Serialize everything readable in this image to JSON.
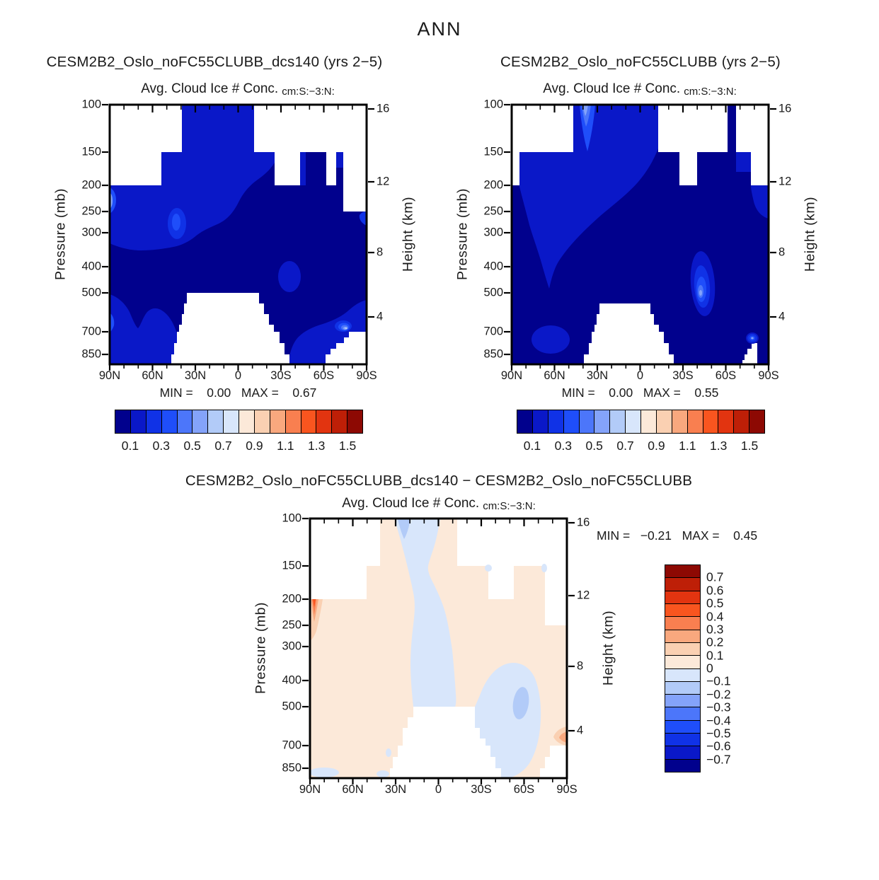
{
  "figure": {
    "title": "ANN"
  },
  "colors": {
    "background": "#ffffff",
    "axis": "#000000",
    "text": "#1a1a1a",
    "palette16": [
      "#01018D",
      "#0A18C8",
      "#1032E6",
      "#1F4EFA",
      "#4C76FA",
      "#84A3FA",
      "#B2CBF8",
      "#D8E6FB",
      "#FCE9D9",
      "#FAD0B2",
      "#F9A87E",
      "#F97F50",
      "#F9551F",
      "#E23410",
      "#BE1F07",
      "#8D0903"
    ]
  },
  "panels": [
    {
      "title": "CESM2B2_Oslo_noFC55CLUBB_dcs140 (yrs 2−5)",
      "subtitle": "Avg. Cloud Ice # Conc.",
      "units": "cm:S:−3:N:",
      "ylabel": "Pressure (mb)",
      "y2label": "Height (km)",
      "yticks": [
        "100",
        "150",
        "200",
        "250",
        "300",
        "400",
        "500",
        "700",
        "850"
      ],
      "y2ticks": [
        "16",
        "12",
        "8",
        "4"
      ],
      "xticks": [
        "90N",
        "60N",
        "30N",
        "0",
        "30S",
        "60S",
        "90S"
      ],
      "stats": "MIN =    0.00   MAX =    0.67",
      "colorbar_labels": [
        "0.1",
        "0.3",
        "0.5",
        "0.7",
        "0.9",
        "1.1",
        "1.3",
        "1.5"
      ]
    },
    {
      "title": "CESM2B2_Oslo_noFC55CLUBB (yrs 2−5)",
      "subtitle": "Avg. Cloud Ice # Conc.",
      "units": "cm:S:−3:N:",
      "ylabel": "Pressure (mb)",
      "y2label": "Height (km)",
      "yticks": [
        "100",
        "150",
        "200",
        "250",
        "300",
        "400",
        "500",
        "700",
        "850"
      ],
      "y2ticks": [
        "16",
        "12",
        "8",
        "4"
      ],
      "xticks": [
        "90N",
        "60N",
        "30N",
        "0",
        "30S",
        "60S",
        "90S"
      ],
      "stats": "MIN =    0.00   MAX =    0.55",
      "colorbar_labels": [
        "0.1",
        "0.3",
        "0.5",
        "0.7",
        "0.9",
        "1.1",
        "1.3",
        "1.5"
      ]
    },
    {
      "title": "CESM2B2_Oslo_noFC55CLUBB_dcs140 − CESM2B2_Oslo_noFC55CLUBB",
      "subtitle": "Avg. Cloud Ice # Conc.",
      "units": "cm:S:−3:N:",
      "ylabel": "Pressure (mb)",
      "y2label": "Height (km)",
      "yticks": [
        "100",
        "150",
        "200",
        "250",
        "300",
        "400",
        "500",
        "700",
        "850"
      ],
      "y2ticks": [
        "16",
        "12",
        "8",
        "4"
      ],
      "xticks": [
        "90N",
        "60N",
        "30N",
        "0",
        "30S",
        "60S",
        "90S"
      ],
      "stats": "MIN =   −0.21   MAX =    0.45",
      "colorbar_labels": [
        "0.7",
        "0.6",
        "0.5",
        "0.4",
        "0.3",
        "0.2",
        "0.1",
        "0",
        "−0.1",
        "−0.2",
        "−0.3",
        "−0.4",
        "−0.5",
        "−0.6",
        "−0.7"
      ]
    }
  ],
  "chart_data": [
    {
      "type": "heatmap",
      "panel": "top-left",
      "title": "CESM2B2_Oslo_noFC55CLUBB_dcs140 (yrs 2−5)",
      "field": "Avg. Cloud Ice # Conc.",
      "units": "cm:S:−3:N: (cm^-3)",
      "season": "ANN",
      "x_axis": {
        "ticks": [
          "90N",
          "60N",
          "30N",
          "0",
          "30S",
          "60S",
          "90S"
        ],
        "range_deg": [
          90,
          -90
        ]
      },
      "y_axis_left": {
        "label": "Pressure (mb)",
        "scale": "log",
        "ticks": [
          100,
          150,
          200,
          250,
          300,
          400,
          500,
          700,
          850
        ],
        "range": [
          100,
          925
        ]
      },
      "y_axis_right": {
        "label": "Height (km)",
        "ticks": [
          16,
          12,
          8,
          4
        ]
      },
      "contour_levels": [
        0.1,
        0.2,
        0.3,
        0.4,
        0.5,
        0.6,
        0.7,
        0.8,
        0.9,
        1.0,
        1.1,
        1.2,
        1.3,
        1.4,
        1.5
      ],
      "min": 0.0,
      "max": 0.67,
      "colorbar": {
        "orientation": "horizontal",
        "tick_labels": [
          0.1,
          0.3,
          0.5,
          0.7,
          0.9,
          1.1,
          1.3,
          1.5
        ],
        "n_colors": 16
      },
      "notes": "Field mostly in lowest bins (<0.2); white areas = below lowest contour / missing; local maxima near 45N 250mb, 60S 450mb, and 80S 700mb (up to 0.67)."
    },
    {
      "type": "heatmap",
      "panel": "top-right",
      "title": "CESM2B2_Oslo_noFC55CLUBB (yrs 2−5)",
      "field": "Avg. Cloud Ice # Conc.",
      "units": "cm:S:−3:N: (cm^-3)",
      "season": "ANN",
      "x_axis": {
        "ticks": [
          "90N",
          "60N",
          "30N",
          "0",
          "30S",
          "60S",
          "90S"
        ],
        "range_deg": [
          90,
          -90
        ]
      },
      "y_axis_left": {
        "label": "Pressure (mb)",
        "scale": "log",
        "ticks": [
          100,
          150,
          200,
          250,
          300,
          400,
          500,
          700,
          850
        ],
        "range": [
          100,
          925
        ]
      },
      "y_axis_right": {
        "label": "Height (km)",
        "ticks": [
          16,
          12,
          8,
          4
        ]
      },
      "contour_levels": [
        0.1,
        0.2,
        0.3,
        0.4,
        0.5,
        0.6,
        0.7,
        0.8,
        0.9,
        1.0,
        1.1,
        1.2,
        1.3,
        1.4,
        1.5
      ],
      "min": 0.0,
      "max": 0.55,
      "colorbar": {
        "orientation": "horizontal",
        "tick_labels": [
          0.1,
          0.3,
          0.5,
          0.7,
          0.9,
          1.1,
          1.3,
          1.5
        ],
        "n_colors": 16
      },
      "notes": "Similar structure; local maximum ~0.55 near 55S 500mb."
    },
    {
      "type": "heatmap",
      "panel": "bottom-difference",
      "title": "CESM2B2_Oslo_noFC55CLUBB_dcs140 − CESM2B2_Oslo_noFC55CLUBB",
      "field": "Avg. Cloud Ice # Conc.",
      "units": "cm:S:−3:N: (cm^-3)",
      "season": "ANN",
      "x_axis": {
        "ticks": [
          "90N",
          "60N",
          "30N",
          "0",
          "30S",
          "60S",
          "90S"
        ],
        "range_deg": [
          90,
          -90
        ]
      },
      "y_axis_left": {
        "label": "Pressure (mb)",
        "scale": "log",
        "ticks": [
          100,
          150,
          200,
          250,
          300,
          400,
          500,
          700,
          850
        ],
        "range": [
          100,
          925
        ]
      },
      "y_axis_right": {
        "label": "Height (km)",
        "ticks": [
          16,
          12,
          8,
          4
        ]
      },
      "contour_levels": [
        -0.7,
        -0.6,
        -0.5,
        -0.4,
        -0.3,
        -0.2,
        -0.1,
        0,
        0.1,
        0.2,
        0.3,
        0.4,
        0.5,
        0.6,
        0.7
      ],
      "min": -0.21,
      "max": 0.45,
      "colorbar": {
        "orientation": "vertical",
        "tick_labels": [
          0.7,
          0.6,
          0.5,
          0.4,
          0.3,
          0.2,
          0.1,
          0,
          -0.1,
          -0.2,
          -0.3,
          -0.4,
          -0.5,
          -0.6,
          -0.7
        ],
        "n_colors": 16
      },
      "notes": "Mostly weak positive (0–0.1); negative band (−0.1 to −0.2) in tropics 100–500mb and near 55S 500mb; positive max 0.45 at 90N ~200mb; small positive spot near 90S 700mb."
    }
  ]
}
